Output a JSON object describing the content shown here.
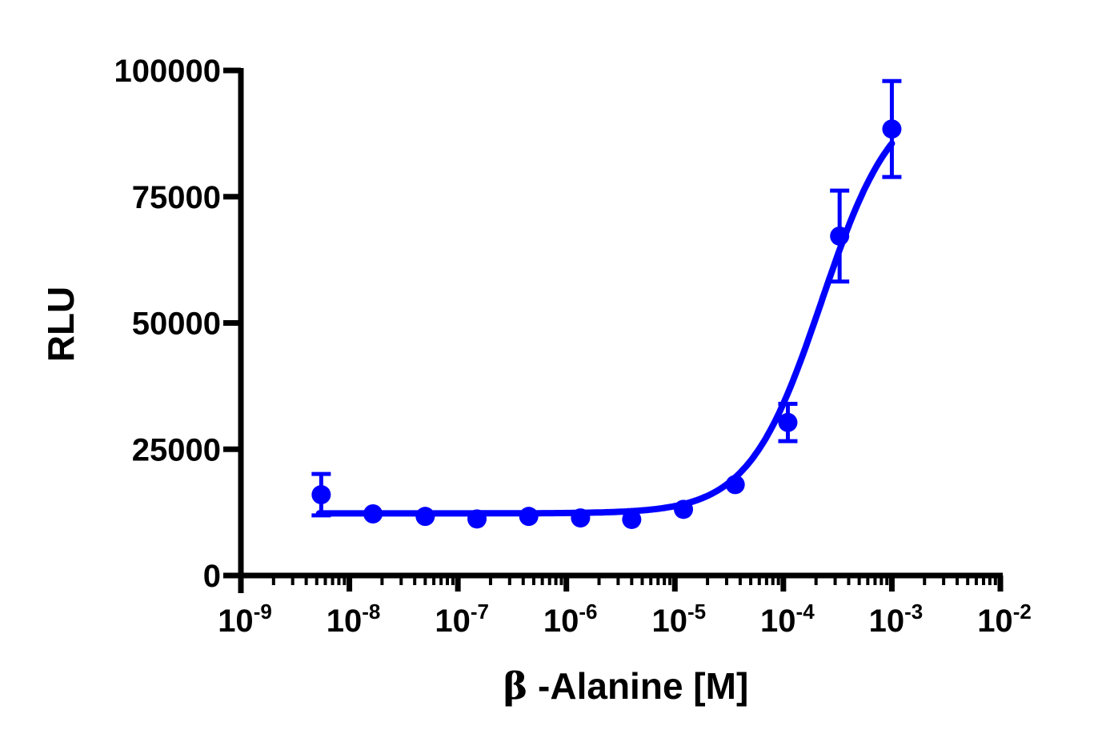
{
  "chart_data": {
    "type": "scatter",
    "title": "",
    "xlabel": "β -Alanine [M]",
    "ylabel": "RLU",
    "xscale": "log",
    "xlim": [
      1e-09,
      0.01
    ],
    "ylim": [
      0,
      100000
    ],
    "grid": false,
    "legend": null,
    "x_tick_labels": [
      {
        "base": "10",
        "exp": "-9",
        "value": 1e-09
      },
      {
        "base": "10",
        "exp": "-8",
        "value": 1e-08
      },
      {
        "base": "10",
        "exp": "-7",
        "value": 1e-07
      },
      {
        "base": "10",
        "exp": "-6",
        "value": 1e-06
      },
      {
        "base": "10",
        "exp": "-5",
        "value": 1e-05
      },
      {
        "base": "10",
        "exp": "-4",
        "value": 0.0001
      },
      {
        "base": "10",
        "exp": "-3",
        "value": 0.001
      },
      {
        "base": "10",
        "exp": "-2",
        "value": 0.01
      }
    ],
    "y_tick_labels": [
      "0",
      "25000",
      "50000",
      "75000",
      "100000"
    ],
    "y_ticks": [
      0,
      25000,
      50000,
      75000,
      100000
    ],
    "series": [
      {
        "name": "β-Alanine",
        "color": "#0000ff",
        "marker": "circle",
        "x": [
          5.5e-09,
          1.65e-08,
          5e-08,
          1.5e-07,
          4.5e-07,
          1.35e-06,
          4e-06,
          1.2e-05,
          3.6e-05,
          0.00011,
          0.00033,
          0.001
        ],
        "y": [
          16000,
          12200,
          11700,
          11200,
          11700,
          11400,
          11100,
          13100,
          18000,
          30300,
          67200,
          88400
        ],
        "error": [
          4100,
          0,
          0,
          0,
          0,
          0,
          0,
          0,
          0,
          3700,
          9000,
          9500
        ]
      }
    ],
    "fit": {
      "type": "sigmoidal dose-response (4PL)",
      "bottom": 12300,
      "top": 96000,
      "log_ec50": -3.65,
      "hill_slope": 1.3,
      "color": "#0000ff"
    }
  },
  "axes": {
    "x_title_prefix": "β",
    "x_title_rest": " -Alanine [M]",
    "y_title": "RLU"
  }
}
